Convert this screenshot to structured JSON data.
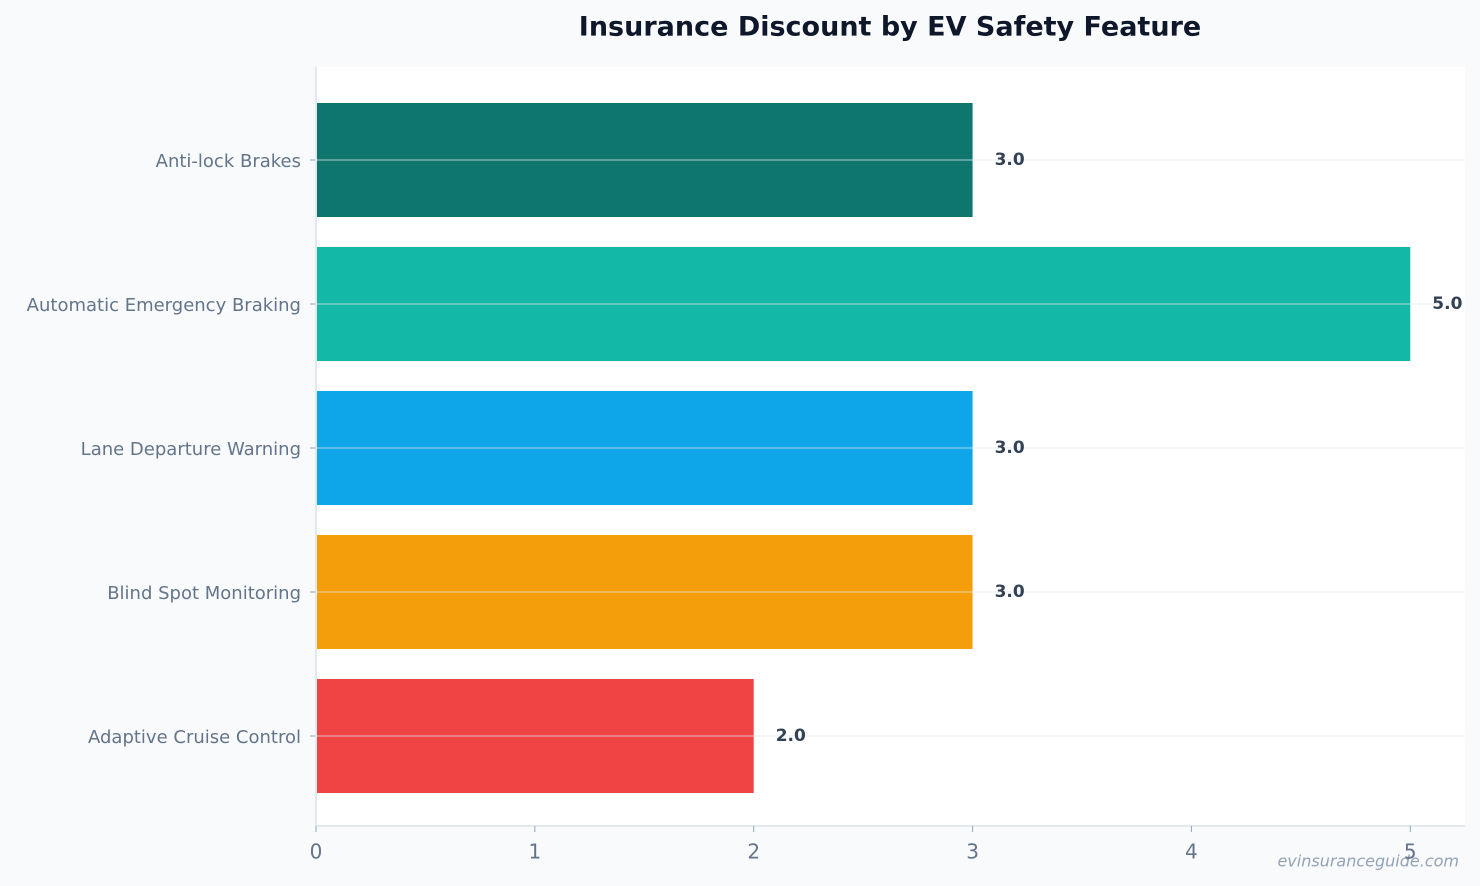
{
  "chart_data": {
    "type": "barh",
    "title": "Insurance Discount by EV Safety Feature",
    "categories": [
      "Anti-lock Brakes",
      "Automatic Emergency Braking",
      "Lane Departure Warning",
      "Blind Spot Monitoring",
      "Adaptive Cruise Control"
    ],
    "values": [
      3,
      5,
      3,
      3,
      2
    ],
    "value_labels": [
      "3.0",
      "5.0",
      "3.0",
      "3.0",
      "2.0"
    ],
    "colors": [
      "#0f766e",
      "#14b8a6",
      "#0ea5e9",
      "#f59e0b",
      "#ef4444"
    ],
    "xlim": [
      0,
      5.25
    ],
    "xticks": [
      0,
      1,
      2,
      3,
      4,
      5
    ],
    "grid": true,
    "watermark": "evinsuranceguide.com"
  }
}
